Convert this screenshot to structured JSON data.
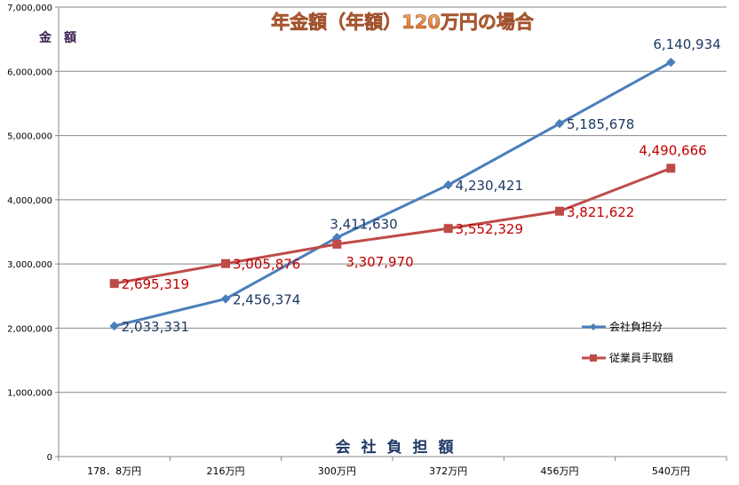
{
  "chart_data": {
    "type": "line",
    "title": "年金額（年額）120万円の場合",
    "ylabel": "金　額",
    "xlabel": "会社負担額",
    "categories": [
      "178．8万円",
      "216万円",
      "300万円",
      "372万円",
      "456万円",
      "540万円"
    ],
    "ylim": [
      0,
      7000000
    ],
    "yticks": [
      "0",
      "1,000,000",
      "2,000,000",
      "3,000,000",
      "4,000,000",
      "5,000,000",
      "6,000,000",
      "7,000,000"
    ],
    "grid": true,
    "legend_position": "right",
    "series": [
      {
        "name": "会社負担分",
        "color": "#4a7ebb",
        "label_color": "#1f3864",
        "marker": "diamond",
        "values": [
          2033331,
          2456374,
          3411630,
          4230421,
          5185678,
          6140934
        ],
        "labels": [
          "2,033,331",
          "2,456,374",
          "3,411,630",
          "4,230,421",
          "5,185,678",
          "6,140,934"
        ]
      },
      {
        "name": "従業員手取額",
        "color": "#be4b48",
        "label_color": "#c00000",
        "marker": "square",
        "values": [
          2695319,
          3005876,
          3307970,
          3552329,
          3821622,
          4490666
        ],
        "labels": [
          "2,695,319",
          "3,005,876",
          "3,307,970",
          "3,552,329",
          "3,821,622",
          "4,490,666"
        ]
      }
    ]
  }
}
